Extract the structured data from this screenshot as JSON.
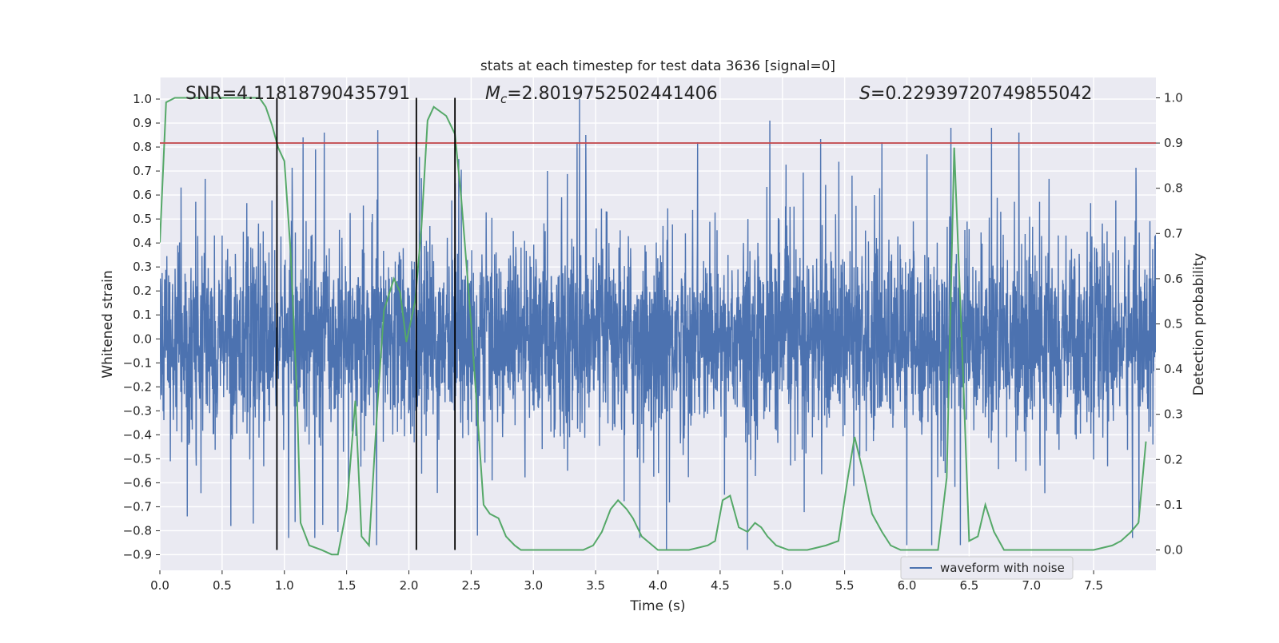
{
  "chart_data": {
    "type": "line",
    "title": "stats at each timestep for test data 3636 [signal=0]",
    "xlabel": "Time (s)",
    "ylabel_left": "Whitened strain",
    "ylabel_right": "Detection probability",
    "xlim": [
      0.0,
      8.0
    ],
    "ylim_left": [
      -0.965,
      1.09
    ],
    "ylim_right": [
      -0.045,
      1.045
    ],
    "x_ticks": [
      0.0,
      0.5,
      1.0,
      1.5,
      2.0,
      2.5,
      3.0,
      3.5,
      4.0,
      4.5,
      5.0,
      5.5,
      6.0,
      6.5,
      7.0,
      7.5
    ],
    "x_tick_labels": [
      "0.0",
      "0.5",
      "1.0",
      "1.5",
      "2.0",
      "2.5",
      "3.0",
      "3.5",
      "4.0",
      "4.5",
      "5.0",
      "5.5",
      "6.0",
      "6.5",
      "7.0",
      "7.5"
    ],
    "y_left_ticks": [
      1.0,
      0.9,
      0.8,
      0.7,
      0.6,
      0.5,
      0.4,
      0.3,
      0.2,
      0.1,
      0.0,
      -0.1,
      -0.2,
      -0.3,
      -0.4,
      -0.5,
      -0.6,
      -0.7,
      -0.8,
      -0.9
    ],
    "y_left_tick_labels": [
      "1.0",
      "0.9",
      "0.8",
      "0.7",
      "0.6",
      "0.5",
      "0.4",
      "0.3",
      "0.2",
      "0.1",
      "0.0",
      "−0.1",
      "−0.2",
      "−0.3",
      "−0.4",
      "−0.5",
      "−0.6",
      "−0.7",
      "−0.8",
      "−0.9"
    ],
    "y_right_ticks": [
      1.0,
      0.9,
      0.8,
      0.7,
      0.6,
      0.5,
      0.4,
      0.3,
      0.2,
      0.1,
      0.0
    ],
    "y_right_tick_labels": [
      "1.0",
      "0.9",
      "0.8",
      "0.7",
      "0.6",
      "0.5",
      "0.4",
      "0.3",
      "0.2",
      "0.1",
      "0.0"
    ],
    "grid": true,
    "legend_position": "bottom-right",
    "annotations": {
      "snr": "SNR=4.11818790435791",
      "mc_symbol": "M",
      "mc_subscript": "c",
      "mc_value": "=2.8019752502441406",
      "s_symbol": "S",
      "s_value": "=0.22939720749855042"
    },
    "series": [
      {
        "name": "waveform with noise",
        "axis": "left",
        "color": "#4c72b0",
        "style": "noise",
        "x_range": [
          0.0,
          8.0
        ],
        "approx_amplitude": [
          -0.88,
          1.0
        ],
        "peaks": [
          {
            "x": 0.94,
            "y": 0.64
          },
          {
            "x": 1.15,
            "y": 0.84
          },
          {
            "x": 1.25,
            "y": 0.79
          },
          {
            "x": 1.32,
            "y": 0.86
          },
          {
            "x": 1.75,
            "y": 0.87
          },
          {
            "x": 2.1,
            "y": 0.67
          },
          {
            "x": 2.4,
            "y": 0.75
          },
          {
            "x": 3.35,
            "y": 0.82
          },
          {
            "x": 3.37,
            "y": 1.0
          },
          {
            "x": 3.42,
            "y": 0.85
          },
          {
            "x": 4.32,
            "y": 0.82
          },
          {
            "x": 4.9,
            "y": 0.91
          },
          {
            "x": 5.8,
            "y": 0.82
          },
          {
            "x": 6.68,
            "y": 0.88
          },
          {
            "x": 6.9,
            "y": 0.86
          }
        ],
        "troughs": [
          {
            "x": 0.22,
            "y": -0.74
          },
          {
            "x": 0.57,
            "y": -0.78
          },
          {
            "x": 0.75,
            "y": -0.77
          },
          {
            "x": 1.74,
            "y": -0.86
          },
          {
            "x": 2.55,
            "y": -0.82
          },
          {
            "x": 4.07,
            "y": -0.88
          },
          {
            "x": 4.72,
            "y": -0.88
          },
          {
            "x": 6.0,
            "y": -0.86
          },
          {
            "x": 6.2,
            "y": -0.86
          },
          {
            "x": 6.43,
            "y": -0.86
          }
        ]
      },
      {
        "name": "",
        "axis": "right",
        "color": "#55a868",
        "x": [
          0.0,
          0.05,
          0.12,
          0.25,
          0.4,
          0.6,
          0.8,
          0.85,
          0.9,
          0.95,
          1.0,
          1.05,
          1.1,
          1.13,
          1.2,
          1.3,
          1.38,
          1.43,
          1.5,
          1.57,
          1.62,
          1.68,
          1.75,
          1.8,
          1.88,
          1.93,
          1.98,
          2.05,
          2.1,
          2.15,
          2.2,
          2.3,
          2.37,
          2.42,
          2.5,
          2.55,
          2.6,
          2.65,
          2.72,
          2.78,
          2.85,
          2.9,
          3.0,
          3.2,
          3.4,
          3.48,
          3.55,
          3.62,
          3.68,
          3.75,
          3.8,
          3.87,
          4.0,
          4.1,
          4.25,
          4.4,
          4.46,
          4.52,
          4.58,
          4.65,
          4.72,
          4.78,
          4.83,
          4.88,
          4.95,
          5.05,
          5.2,
          5.35,
          5.45,
          5.52,
          5.58,
          5.65,
          5.72,
          5.8,
          5.87,
          5.95,
          6.05,
          6.15,
          6.25,
          6.32,
          6.38,
          6.45,
          6.5,
          6.57,
          6.63,
          6.7,
          6.78,
          6.9,
          7.1,
          7.3,
          7.5,
          7.65,
          7.72,
          7.8,
          7.86,
          7.92
        ],
        "values": [
          0.68,
          0.99,
          1.0,
          1.0,
          1.0,
          1.0,
          1.0,
          0.98,
          0.94,
          0.89,
          0.86,
          0.66,
          0.35,
          0.06,
          0.01,
          0.0,
          -0.01,
          -0.01,
          0.09,
          0.33,
          0.03,
          0.01,
          0.33,
          0.53,
          0.6,
          0.57,
          0.46,
          0.55,
          0.71,
          0.95,
          0.98,
          0.96,
          0.92,
          0.78,
          0.5,
          0.3,
          0.1,
          0.08,
          0.07,
          0.03,
          0.01,
          0.0,
          0.0,
          0.0,
          0.0,
          0.01,
          0.04,
          0.09,
          0.11,
          0.09,
          0.07,
          0.03,
          0.0,
          0.0,
          0.0,
          0.01,
          0.02,
          0.11,
          0.12,
          0.05,
          0.04,
          0.06,
          0.05,
          0.03,
          0.01,
          0.0,
          0.0,
          0.01,
          0.02,
          0.15,
          0.25,
          0.17,
          0.08,
          0.04,
          0.01,
          0.0,
          0.0,
          0.0,
          0.0,
          0.16,
          0.89,
          0.4,
          0.02,
          0.03,
          0.1,
          0.04,
          0.0,
          0.0,
          0.0,
          0.0,
          0.0,
          0.01,
          0.02,
          0.04,
          0.06,
          0.24
        ]
      },
      {
        "name": "",
        "type": "hline",
        "axis": "right",
        "y": 0.9,
        "color": "#c44e52"
      },
      {
        "name": "",
        "type": "vline",
        "x": 0.94,
        "y_range_right": [
          0.0,
          1.0
        ],
        "color": "#000000"
      },
      {
        "name": "",
        "type": "vline",
        "x": 2.06,
        "y_range_right": [
          0.0,
          1.0
        ],
        "color": "#000000"
      },
      {
        "name": "",
        "type": "vline",
        "x": 2.37,
        "y_range_right": [
          0.0,
          1.0
        ],
        "color": "#000000"
      }
    ]
  }
}
